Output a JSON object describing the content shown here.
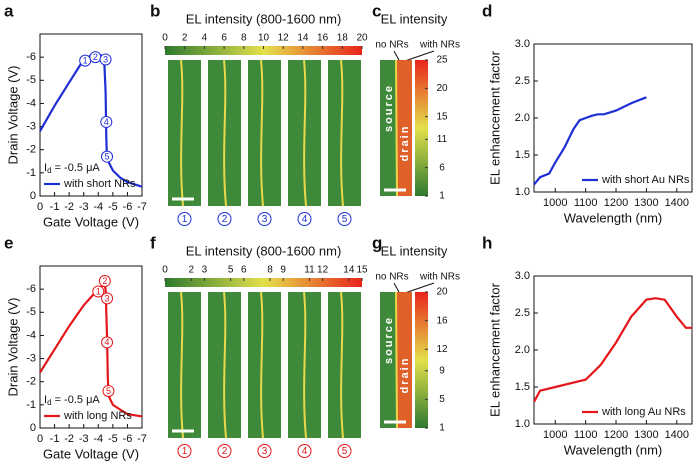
{
  "chart_data": [
    {
      "type": "line",
      "label": "a",
      "xlabel": "Gate Voltage (V)",
      "ylabel": "Drain Voltage (V)",
      "xlim": [
        0,
        -7
      ],
      "xticks": [
        0,
        -1,
        -2,
        -3,
        -4,
        -5,
        -6,
        -7
      ],
      "ylim": [
        0,
        -7
      ],
      "yticks": [
        0,
        -1,
        -2,
        -3,
        -4,
        -5,
        -6
      ],
      "x": [
        0,
        -1,
        -2,
        -3,
        -3.6,
        -4.1,
        -4.4,
        -4.5,
        -4.55,
        -4.6,
        -5,
        -5.5,
        -6,
        -7
      ],
      "series": [
        {
          "name": "with short NRs",
          "color": "#1f2fd6",
          "values": [
            -2.8,
            -3.9,
            -4.9,
            -5.9,
            -6.1,
            -6.1,
            -6.0,
            -4.5,
            -2.5,
            -1.6,
            -1.1,
            -0.8,
            -0.6,
            -0.4
          ]
        }
      ],
      "point_labels": [
        {
          "text": "1",
          "x": -3.1,
          "y": -5.85
        },
        {
          "text": "2",
          "x": -3.8,
          "y": -6.0
        },
        {
          "text": "3",
          "x": -4.5,
          "y": -5.9
        },
        {
          "text": "4",
          "x": -4.55,
          "y": -3.2
        },
        {
          "text": "5",
          "x": -4.6,
          "y": -1.7
        }
      ],
      "annotation": [
        "I",
        "d",
        " = -0.5 μA"
      ],
      "legend": "lower left"
    },
    {
      "type": "line",
      "label": "d",
      "xlabel": "Wavelength (nm)",
      "ylabel": "EL enhancement factor",
      "xlim": [
        930,
        1450
      ],
      "xticks": [
        1000,
        1100,
        1200,
        1300,
        1400
      ],
      "ylim": [
        1,
        3
      ],
      "yticks": [
        {
          "value": 1,
          "label": "1.0"
        },
        1.5,
        {
          "value": 2,
          "label": "2.0"
        },
        2.5,
        {
          "value": 3,
          "label": "3.0"
        }
      ],
      "x": [
        930,
        950,
        980,
        1000,
        1030,
        1060,
        1080,
        1100,
        1120,
        1140,
        1160,
        1200,
        1250,
        1300
      ],
      "series": [
        {
          "name": "with short Au NRs",
          "color": "#1f2fd6",
          "values": [
            1.1,
            1.2,
            1.25,
            1.4,
            1.6,
            1.85,
            1.97,
            2.0,
            2.03,
            2.05,
            2.05,
            2.1,
            2.2,
            2.28
          ]
        }
      ],
      "legend": "lower right"
    },
    {
      "type": "line",
      "label": "e",
      "xlabel": "Gate Voltage (V)",
      "ylabel": "Drain Voltage (V)",
      "xlim": [
        0,
        -7
      ],
      "xticks": [
        0,
        -1,
        -2,
        -3,
        -4,
        -5,
        -6,
        -7
      ],
      "ylim": [
        0,
        -7
      ],
      "yticks": [
        0,
        -1,
        -2,
        -3,
        -4,
        -5,
        -6
      ],
      "x": [
        0,
        -1,
        -2,
        -3,
        -4,
        -4.4,
        -4.5,
        -4.6,
        -4.65,
        -4.7,
        -5,
        -5.5,
        -6,
        -7
      ],
      "series": [
        {
          "name": "with long NRs",
          "color": "#e3161b",
          "values": [
            -2.4,
            -3.4,
            -4.4,
            -5.3,
            -6.0,
            -6.2,
            -6.0,
            -4.0,
            -2.2,
            -1.4,
            -1.0,
            -0.8,
            -0.6,
            -0.5
          ]
        }
      ],
      "point_labels": [
        {
          "text": "1",
          "x": -4.0,
          "y": -5.9
        },
        {
          "text": "2",
          "x": -4.45,
          "y": -6.35
        },
        {
          "text": "3",
          "x": -4.6,
          "y": -5.6
        },
        {
          "text": "4",
          "x": -4.6,
          "y": -3.7
        },
        {
          "text": "5",
          "x": -4.7,
          "y": -1.6
        }
      ],
      "annotation": [
        "I",
        "d",
        " = -0.5 μA"
      ],
      "legend": "lower left"
    },
    {
      "type": "line",
      "label": "h",
      "xlabel": "Wavelength (nm)",
      "ylabel": "EL enhancement factor",
      "xlim": [
        930,
        1450
      ],
      "xticks": [
        1000,
        1100,
        1200,
        1300,
        1400
      ],
      "ylim": [
        1,
        3
      ],
      "yticks": [
        {
          "value": 1,
          "label": "1.0"
        },
        1.5,
        {
          "value": 2,
          "label": "2.0"
        },
        2.5,
        {
          "value": 3,
          "label": "3.0"
        }
      ],
      "x": [
        930,
        950,
        1000,
        1050,
        1100,
        1150,
        1200,
        1250,
        1300,
        1330,
        1360,
        1400,
        1430,
        1450
      ],
      "series": [
        {
          "name": "with long Au NRs",
          "color": "#e3161b",
          "values": [
            1.3,
            1.45,
            1.5,
            1.55,
            1.6,
            1.8,
            2.1,
            2.45,
            2.68,
            2.7,
            2.68,
            2.45,
            2.3,
            2.3
          ]
        }
      ],
      "legend": "lower right"
    }
  ],
  "images": [
    {
      "kind": "strips",
      "label": "b",
      "title": "EL intensity (800-1600 nm)",
      "colorbar_lim": [
        0,
        20
      ],
      "colorbar_ticks": [
        0,
        2,
        4,
        6,
        8,
        10,
        12,
        14,
        16,
        18,
        20
      ],
      "strip_labels": [
        "1",
        "2",
        "3",
        "4",
        "5"
      ],
      "color": "#1f2fd6"
    },
    {
      "kind": "device",
      "label": "c",
      "title": "EL intensity",
      "notes": [
        "no NRs",
        "with NRs"
      ],
      "regions": [
        "source",
        "drain"
      ],
      "colorbar_lim": [
        1,
        25
      ],
      "colorbar_ticks": [
        1,
        6,
        11,
        15,
        20,
        25
      ]
    },
    {
      "kind": "strips",
      "label": "f",
      "title": "EL intensity (800-1600 nm)",
      "colorbar_lim": [
        0,
        15
      ],
      "colorbar_ticks": [
        0,
        2,
        3,
        5,
        6,
        8,
        9,
        11,
        12,
        14,
        15
      ],
      "strip_labels": [
        "1",
        "2",
        "3",
        "4",
        "5"
      ],
      "color": "#e3161b"
    },
    {
      "kind": "device",
      "label": "g",
      "title": "EL intensity",
      "notes": [
        "no NRs",
        "with NRs"
      ],
      "regions": [
        "source",
        "drain"
      ],
      "colorbar_lim": [
        1,
        20
      ],
      "colorbar_ticks": [
        1,
        5,
        9,
        12,
        16,
        20
      ]
    }
  ]
}
